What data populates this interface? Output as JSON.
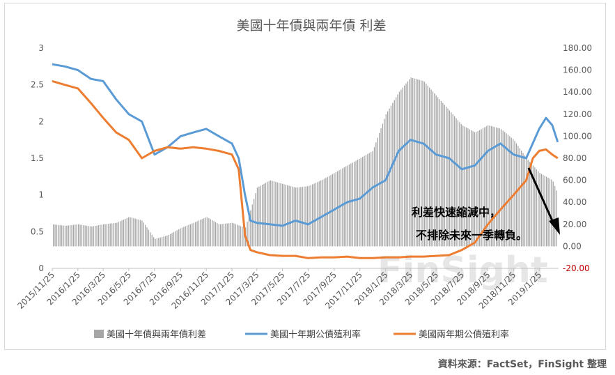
{
  "chart_data": {
    "type": "bar+line",
    "title": "美國十年債與兩年債 利差",
    "x_tick_labels": [
      "2015/11/25",
      "2016/1/25",
      "2016/3/25",
      "2016/5/25",
      "2016/7/25",
      "2016/9/25",
      "2016/11/25",
      "2017/1/25",
      "2017/3/25",
      "2017/5/25",
      "2017/7/25",
      "2017/9/25",
      "2017/11/25",
      "2018/1/25",
      "2018/3/25",
      "2018/5/25",
      "2018/7/25",
      "2018/9/25",
      "2018/11/25",
      "2019/1/25"
    ],
    "left_axis": {
      "ylim": [
        0,
        3
      ],
      "ticks": [
        "0",
        "0.5",
        "1",
        "1.5",
        "2",
        "2.5",
        "3"
      ]
    },
    "right_axis": {
      "ylim": [
        -20,
        180
      ],
      "ticks": [
        "-20.00",
        "0.00",
        "20.00",
        "40.00",
        "60.00",
        "80.00",
        "100.00",
        "120.00",
        "140.00",
        "160.00",
        "180.00"
      ]
    },
    "grid": false,
    "legend_position": "bottom",
    "series": [
      {
        "name": "美國十年債與兩年債利差",
        "type": "bar",
        "axis": "left",
        "color": "#a6a6a6",
        "x": [
          "2015/11/25",
          "2015/12/25",
          "2016/1/25",
          "2016/2/25",
          "2016/3/25",
          "2016/4/25",
          "2016/5/25",
          "2016/6/25",
          "2016/7/25",
          "2016/8/25",
          "2016/9/25",
          "2016/10/25",
          "2016/11/25",
          "2016/12/25",
          "2017/1/25",
          "2017/2/25",
          "2017/3/25",
          "2017/4/25",
          "2017/5/25",
          "2017/6/25",
          "2017/7/25",
          "2017/8/25",
          "2017/9/25",
          "2017/10/25",
          "2017/11/25",
          "2017/12/25",
          "2018/1/25",
          "2018/2/25",
          "2018/3/25",
          "2018/4/25",
          "2018/5/25",
          "2018/6/25",
          "2018/7/25",
          "2018/8/25",
          "2018/9/25",
          "2018/10/25",
          "2018/11/25",
          "2018/12/25",
          "2019/1/25",
          "2019/2/25",
          "2019/3/10"
        ],
        "values": [
          0.6,
          0.58,
          0.6,
          0.57,
          0.6,
          0.62,
          0.7,
          0.65,
          0.4,
          0.45,
          0.55,
          0.62,
          0.7,
          0.6,
          0.62,
          0.55,
          1.1,
          1.2,
          1.15,
          1.1,
          1.12,
          1.2,
          1.3,
          1.4,
          1.5,
          1.6,
          2.1,
          2.4,
          2.6,
          2.55,
          2.35,
          2.15,
          1.95,
          1.85,
          1.95,
          1.9,
          1.75,
          1.5,
          1.3,
          1.2,
          1.0
        ]
      },
      {
        "name": "美國十年期公債殖利率",
        "type": "line",
        "axis": "left",
        "color": "#5b9bd5",
        "x": [
          "2015/11/25",
          "2015/12/25",
          "2016/1/25",
          "2016/2/25",
          "2016/3/25",
          "2016/4/25",
          "2016/5/25",
          "2016/6/25",
          "2016/7/25",
          "2016/8/25",
          "2016/9/25",
          "2016/10/25",
          "2016/11/25",
          "2016/12/25",
          "2017/1/25",
          "2017/2/10",
          "2017/2/25",
          "2017/3/10",
          "2017/3/25",
          "2017/4/25",
          "2017/5/25",
          "2017/6/25",
          "2017/7/25",
          "2017/8/25",
          "2017/9/25",
          "2017/10/25",
          "2017/11/25",
          "2017/12/25",
          "2018/1/25",
          "2018/2/25",
          "2018/3/25",
          "2018/4/25",
          "2018/5/25",
          "2018/6/25",
          "2018/7/25",
          "2018/8/25",
          "2018/9/25",
          "2018/10/25",
          "2018/11/25",
          "2018/12/25",
          "2019/1/25",
          "2019/2/10",
          "2019/2/25",
          "2019/3/10"
        ],
        "values": [
          2.78,
          2.75,
          2.7,
          2.58,
          2.55,
          2.3,
          2.1,
          2.0,
          1.55,
          1.65,
          1.8,
          1.85,
          1.9,
          1.8,
          1.7,
          1.5,
          1.0,
          0.65,
          0.62,
          0.6,
          0.58,
          0.65,
          0.6,
          0.7,
          0.8,
          0.9,
          0.95,
          1.1,
          1.2,
          1.6,
          1.75,
          1.7,
          1.55,
          1.5,
          1.35,
          1.4,
          1.6,
          1.7,
          1.55,
          1.5,
          1.9,
          2.05,
          1.95,
          1.72
        ]
      },
      {
        "name": "美國兩年期公債殖利率",
        "type": "line",
        "axis": "left",
        "color": "#ed7d31",
        "x": [
          "2015/11/25",
          "2015/12/25",
          "2016/1/25",
          "2016/2/25",
          "2016/3/25",
          "2016/4/25",
          "2016/5/25",
          "2016/6/25",
          "2016/7/25",
          "2016/8/25",
          "2016/9/25",
          "2016/10/25",
          "2016/11/25",
          "2016/12/25",
          "2017/1/25",
          "2017/2/10",
          "2017/2/25",
          "2017/3/10",
          "2017/3/25",
          "2017/4/25",
          "2017/5/25",
          "2017/6/25",
          "2017/7/25",
          "2017/8/25",
          "2017/9/25",
          "2017/10/25",
          "2017/11/25",
          "2017/12/25",
          "2018/1/25",
          "2018/2/25",
          "2018/3/25",
          "2018/4/25",
          "2018/5/25",
          "2018/6/25",
          "2018/7/25",
          "2018/8/25",
          "2018/9/25",
          "2018/10/25",
          "2018/11/25",
          "2018/12/25",
          "2019/1/10",
          "2019/1/25",
          "2019/2/10",
          "2019/2/25",
          "2019/3/10"
        ],
        "values": [
          2.55,
          2.5,
          2.45,
          2.25,
          2.05,
          1.85,
          1.75,
          1.5,
          1.6,
          1.65,
          1.63,
          1.65,
          1.63,
          1.6,
          1.55,
          1.35,
          0.45,
          0.25,
          0.22,
          0.18,
          0.17,
          0.17,
          0.14,
          0.15,
          0.15,
          0.16,
          0.14,
          0.14,
          0.15,
          0.15,
          0.16,
          0.16,
          0.17,
          0.18,
          0.25,
          0.35,
          0.6,
          0.8,
          1.0,
          1.2,
          1.5,
          1.6,
          1.62,
          1.55,
          1.5
        ]
      }
    ],
    "annotation": {
      "line1": "利差快速縮減中，",
      "line2": "不排除未來一季轉負。"
    }
  },
  "watermark": "FinSight",
  "source": "資料來源：FactSet，FinSight 整理"
}
